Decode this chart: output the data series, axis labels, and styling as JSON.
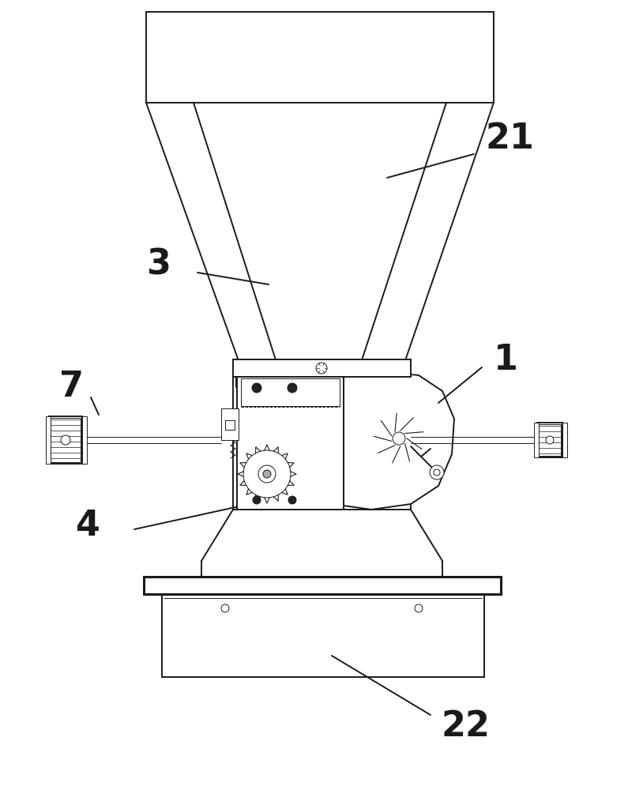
{
  "bg_color": "#ffffff",
  "line_color": "#1a1a1a",
  "label_color": "#000000",
  "label_fontsize": 32,
  "lw_main": 1.4,
  "lw_thin": 0.7,
  "lw_thick": 2.2
}
